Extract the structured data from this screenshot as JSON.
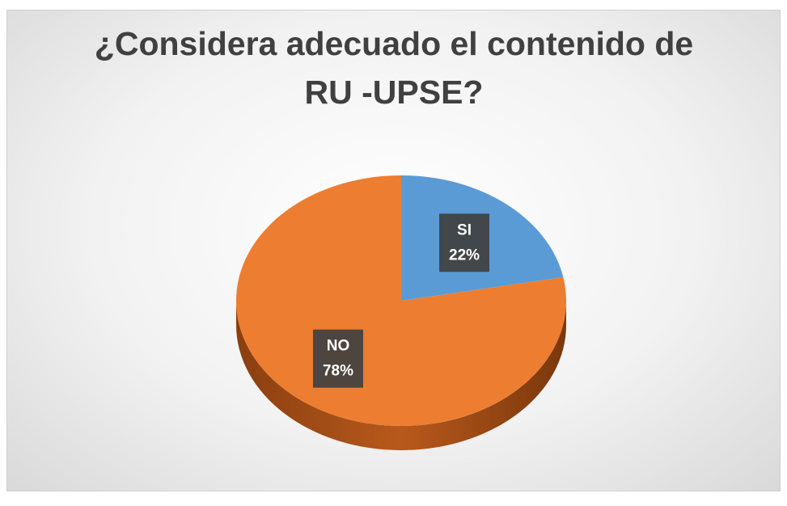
{
  "chart_data": {
    "type": "pie",
    "title": "¿Considera adecuado el contenido de RU -UPSE?",
    "categories": [
      "SI",
      "NO"
    ],
    "values": [
      22,
      78
    ],
    "value_labels": [
      "22%",
      "78%"
    ],
    "colors": [
      "#5b9bd5",
      "#ed7d31"
    ]
  }
}
